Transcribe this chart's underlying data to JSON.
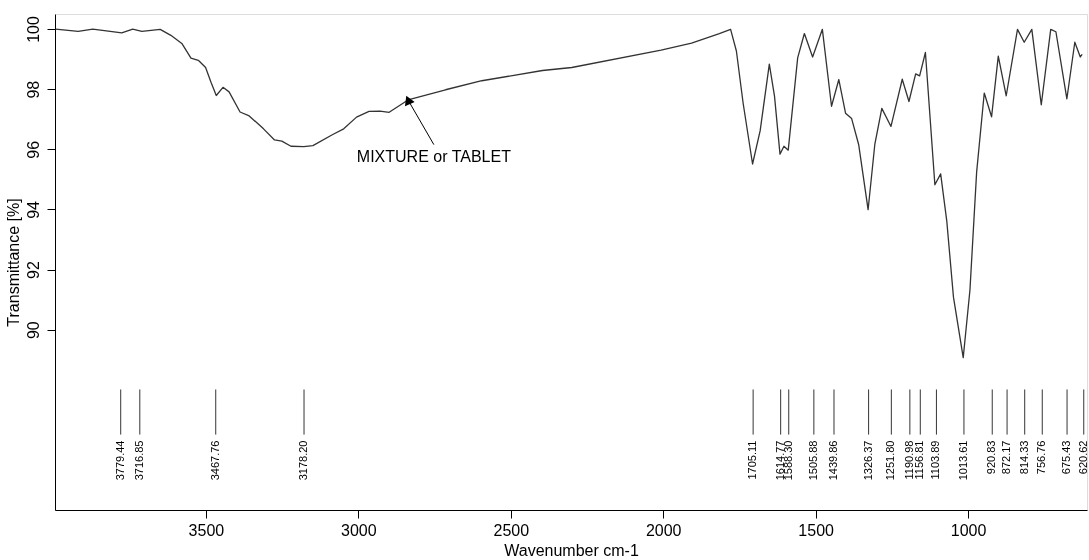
{
  "chart_data": {
    "type": "line",
    "xlabel": "Wavenumber cm-1",
    "ylabel": "Transmittance [%]",
    "xlim": [
      3995,
      610
    ],
    "xticks": [
      3500,
      3000,
      2500,
      2000,
      1500,
      1000
    ],
    "ylim": [
      84,
      100.5
    ],
    "yticks": [
      90,
      92,
      94,
      96,
      98,
      100
    ],
    "grid": false,
    "marker": "none",
    "line_style": "solid",
    "x": [
      3993,
      3919,
      3871,
      3776,
      3740,
      3710,
      3650,
      3615,
      3579,
      3549,
      3525,
      3501,
      3483,
      3466,
      3444,
      3424,
      3388,
      3358,
      3311,
      3275,
      3251,
      3221,
      3179,
      3149,
      3084,
      3048,
      3006,
      2965,
      2929,
      2899,
      2837,
      2714,
      2595,
      2396,
      2300,
      2007,
      1907,
      1816,
      1779,
      1760,
      1738,
      1707,
      1682,
      1652,
      1635,
      1617,
      1604,
      1590,
      1559,
      1537,
      1510,
      1478,
      1448,
      1424,
      1402,
      1382,
      1359,
      1328,
      1306,
      1283,
      1253,
      1216,
      1194,
      1172,
      1159,
      1140,
      1109,
      1090,
      1070,
      1048,
      1016,
      994,
      972,
      947,
      923,
      901,
      875,
      838,
      816,
      791,
      760,
      729,
      712,
      676,
      650,
      632,
      626
    ],
    "series": [
      {
        "color": "#333333",
        "values": [
          100.0,
          99.92,
          100.0,
          99.87,
          100.0,
          99.92,
          99.99,
          99.79,
          99.52,
          99.03,
          98.96,
          98.72,
          98.22,
          97.79,
          98.06,
          97.91,
          97.24,
          97.11,
          96.68,
          96.31,
          96.27,
          96.1,
          96.09,
          96.12,
          96.49,
          96.68,
          97.07,
          97.26,
          97.27,
          97.23,
          97.64,
          97.98,
          98.28,
          98.62,
          98.72,
          99.3,
          99.53,
          99.85,
          99.99,
          99.27,
          97.54,
          95.51,
          96.62,
          98.83,
          97.77,
          95.84,
          96.1,
          95.97,
          99.04,
          99.85,
          99.07,
          99.99,
          97.43,
          98.32,
          97.2,
          97.02,
          96.16,
          93.99,
          96.16,
          97.36,
          96.76,
          98.33,
          97.59,
          98.51,
          98.44,
          99.22,
          94.82,
          95.18,
          93.62,
          91.08,
          89.07,
          91.31,
          95.24,
          97.87,
          97.08,
          99.1,
          97.78,
          99.99,
          99.56,
          99.99,
          97.48,
          99.99,
          99.91,
          97.68,
          99.56,
          99.07,
          99.16
        ]
      }
    ],
    "annotations": [
      {
        "text": "MIXTURE or TABLET",
        "x": 2837,
        "y": 97.64
      }
    ],
    "ref_lines": [
      {
        "axis": "x",
        "value": 3779.44,
        "label": "3779.44"
      },
      {
        "axis": "x",
        "value": 3716.85,
        "label": "3716.85"
      },
      {
        "axis": "x",
        "value": 3467.76,
        "label": "3467.76"
      },
      {
        "axis": "x",
        "value": 3178.2,
        "label": "3178.20"
      },
      {
        "axis": "x",
        "value": 1705.11,
        "label": "1705.11"
      },
      {
        "axis": "x",
        "value": 1614.77,
        "label": "1614.77"
      },
      {
        "axis": "x",
        "value": 1588.3,
        "label": "1588.30"
      },
      {
        "axis": "x",
        "value": 1505.88,
        "label": "1505.88"
      },
      {
        "axis": "x",
        "value": 1439.86,
        "label": "1439.86"
      },
      {
        "axis": "x",
        "value": 1326.37,
        "label": "1326.37"
      },
      {
        "axis": "x",
        "value": 1251.8,
        "label": "1251.80"
      },
      {
        "axis": "x",
        "value": 1190.98,
        "label": "1190.98"
      },
      {
        "axis": "x",
        "value": 1156.81,
        "label": "1156.81"
      },
      {
        "axis": "x",
        "value": 1103.89,
        "label": "1103.89"
      },
      {
        "axis": "x",
        "value": 1013.61,
        "label": "1013.61"
      },
      {
        "axis": "x",
        "value": 920.83,
        "label": "920.83"
      },
      {
        "axis": "x",
        "value": 872.17,
        "label": "872.17"
      },
      {
        "axis": "x",
        "value": 814.33,
        "label": "814.33"
      },
      {
        "axis": "x",
        "value": 756.76,
        "label": "756.76"
      },
      {
        "axis": "x",
        "value": 675.43,
        "label": "675.43"
      },
      {
        "axis": "x",
        "value": 620.62,
        "label": "620.62"
      }
    ]
  }
}
